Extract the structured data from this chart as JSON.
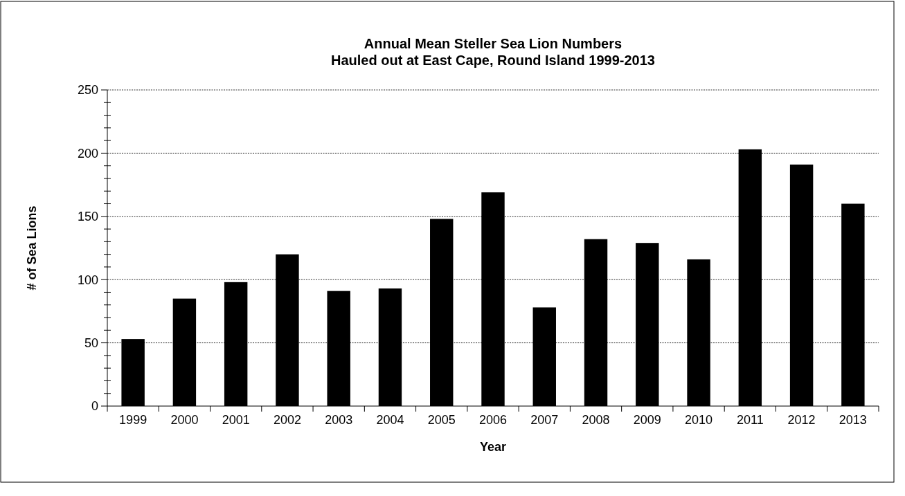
{
  "chart_data": {
    "type": "bar",
    "title": "Annual Mean Steller Sea Lion Numbers\nHauled out at East Cape, Round Island 1999-2013",
    "xlabel": "Year",
    "ylabel": "# of Sea Lions",
    "categories": [
      "1999",
      "2000",
      "2001",
      "2002",
      "2003",
      "2004",
      "2005",
      "2006",
      "2007",
      "2008",
      "2009",
      "2010",
      "2011",
      "2012",
      "2013"
    ],
    "values": [
      53,
      85,
      98,
      120,
      91,
      93,
      148,
      169,
      78,
      132,
      129,
      116,
      203,
      191,
      160
    ],
    "color": "#000000",
    "ylim": [
      0,
      250
    ],
    "yticks": [
      0,
      {
        "value": 10,
        "label": null
      },
      {
        "value": 20,
        "label": null
      },
      {
        "value": 30,
        "label": null
      },
      {
        "value": 40,
        "label": null
      },
      50,
      {
        "value": 60,
        "label": null
      },
      {
        "value": 70,
        "label": null
      },
      {
        "value": 80,
        "label": null
      },
      {
        "value": 90,
        "label": null
      },
      100,
      {
        "value": 110,
        "label": null
      },
      {
        "value": 120,
        "label": null
      },
      {
        "value": 130,
        "label": null
      },
      {
        "value": 140,
        "label": null
      },
      150,
      {
        "value": 160,
        "label": null
      },
      {
        "value": 170,
        "label": null
      },
      {
        "value": 180,
        "label": null
      },
      {
        "value": 190,
        "label": null
      },
      200,
      {
        "value": 210,
        "label": null
      },
      {
        "value": 220,
        "label": null
      },
      {
        "value": 230,
        "label": null
      },
      {
        "value": 240,
        "label": null
      },
      250
    ],
    "grid": "y"
  }
}
